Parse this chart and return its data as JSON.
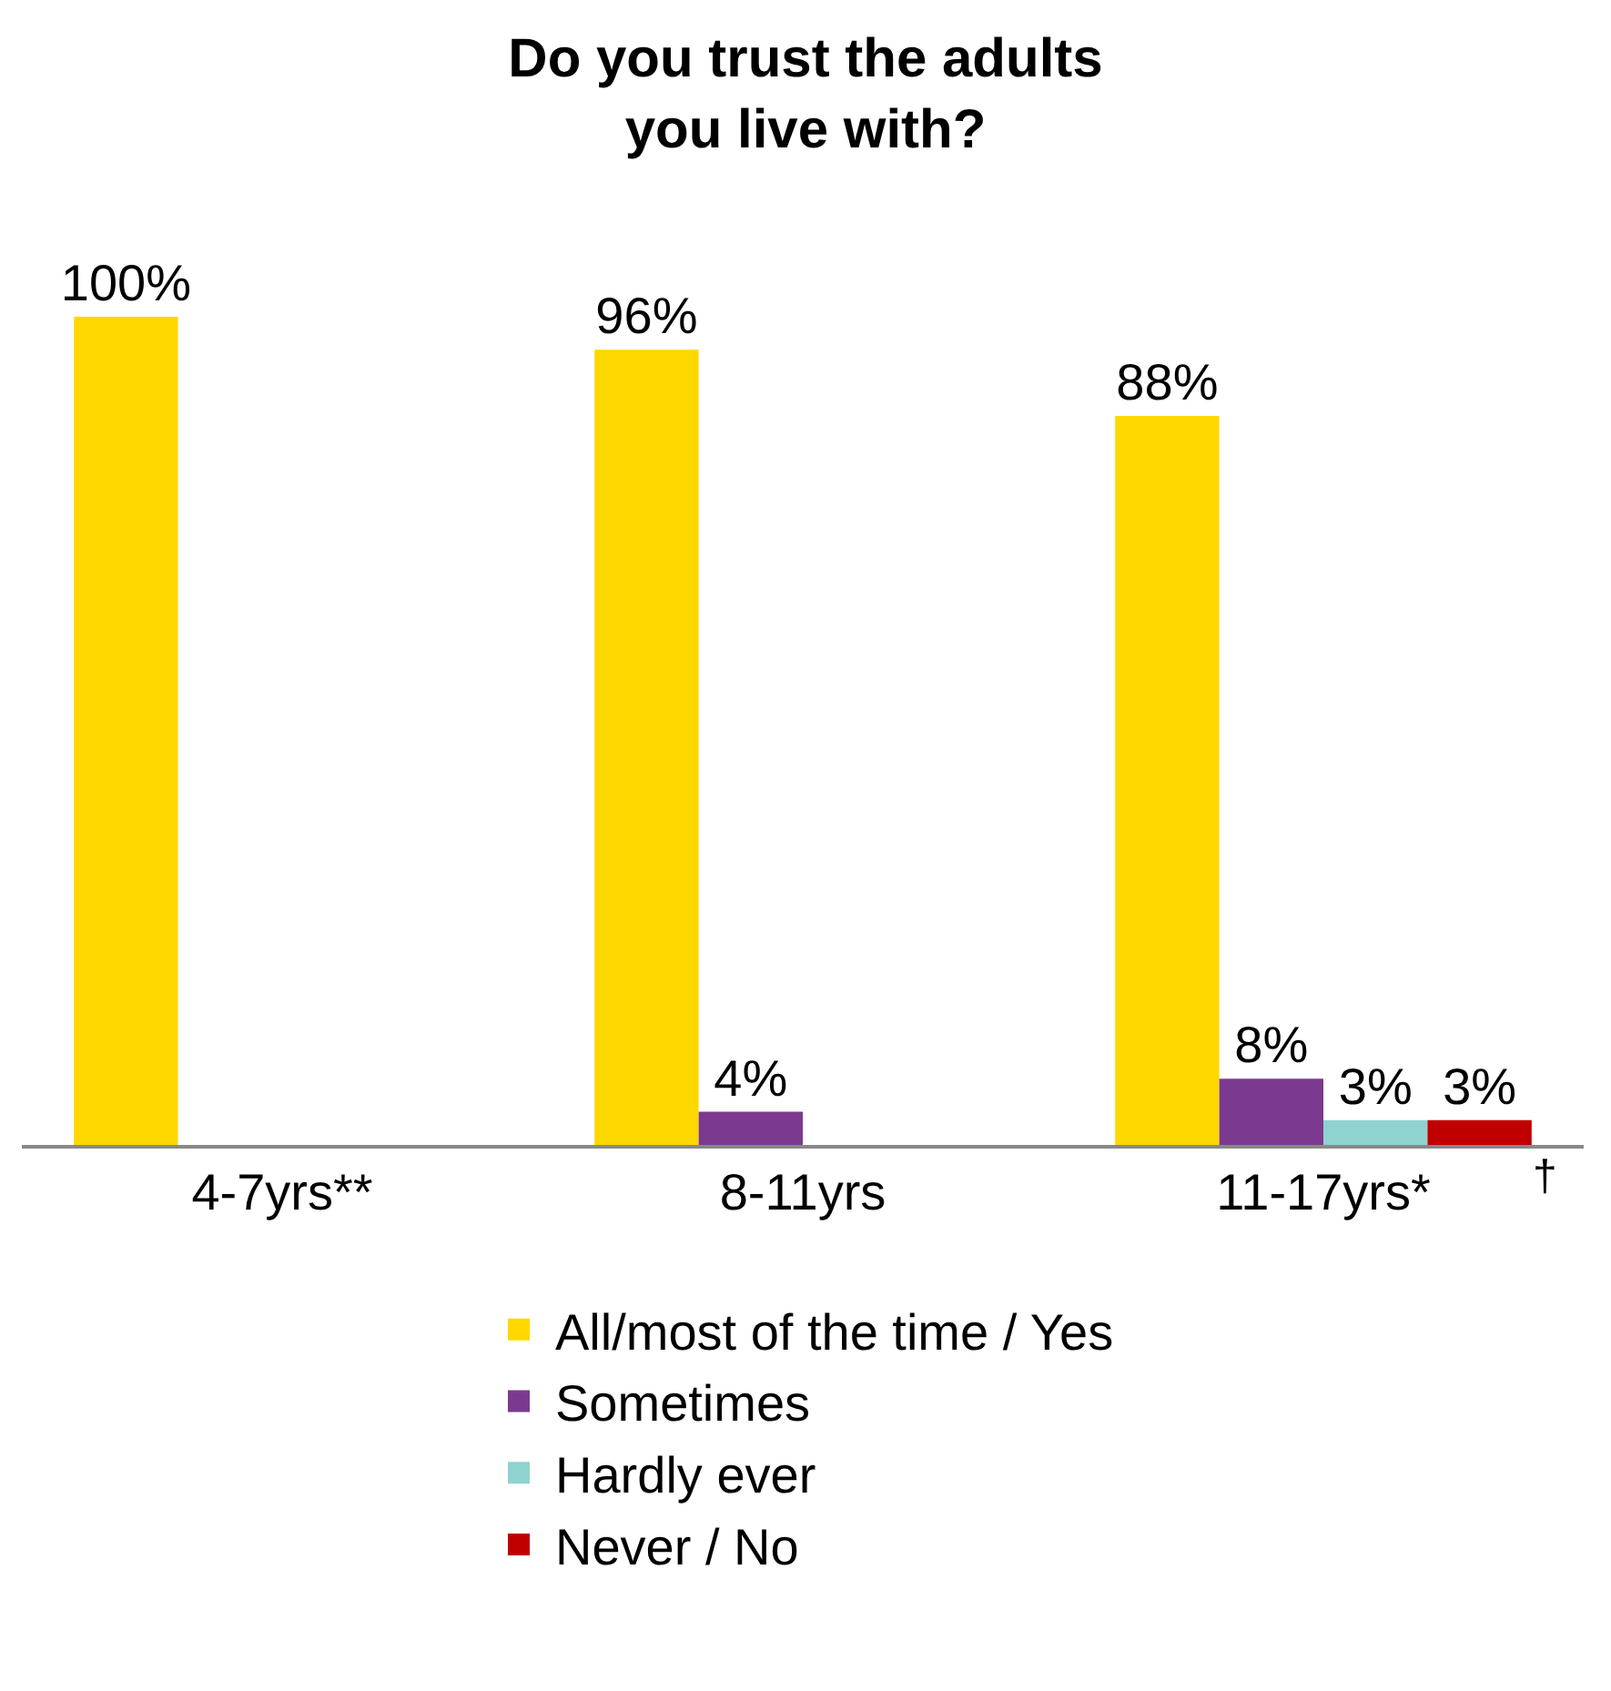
{
  "chart_data": {
    "type": "bar",
    "title": "Do you trust the adults you live with?",
    "categories": [
      "4-7yrs**",
      "8-11yrs",
      "11-17yrs*"
    ],
    "series": [
      {
        "name": "All/most of the time / Yes",
        "color": "#ffd800",
        "values": [
          100,
          96,
          88
        ],
        "value_labels": [
          "100%",
          "96%",
          "88%"
        ]
      },
      {
        "name": "Sometimes",
        "color": "#7b3a8f",
        "values": [
          null,
          4,
          8
        ],
        "value_labels": [
          null,
          "4%",
          "8%"
        ]
      },
      {
        "name": "Hardly ever",
        "color": "#8fd3d0",
        "values": [
          null,
          null,
          3
        ],
        "value_labels": [
          null,
          null,
          "3%"
        ]
      },
      {
        "name": "Never / No",
        "color": "#c00000",
        "values": [
          null,
          null,
          3
        ],
        "value_labels": [
          null,
          null,
          "3%"
        ]
      }
    ],
    "annotations": [
      "†"
    ],
    "legend": "bottom",
    "grid": false,
    "tick_labels": "x"
  }
}
